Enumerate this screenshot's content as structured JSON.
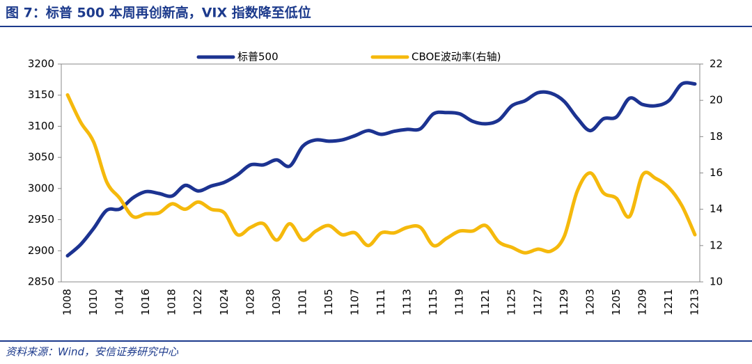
{
  "header": {
    "title": "图 7：标普 500 本周再创新高，VIX 指数降至低位"
  },
  "chart_data": {
    "type": "line",
    "categories": [
      "1008",
      null,
      "1010",
      null,
      "1014",
      null,
      "1016",
      null,
      "1018",
      null,
      "1022",
      null,
      "1024",
      null,
      "1028",
      null,
      "1030",
      null,
      "1101",
      null,
      "1105",
      null,
      "1107",
      null,
      "1111",
      null,
      "1113",
      null,
      "1115",
      null,
      "1119",
      null,
      "1121",
      null,
      "1125",
      null,
      "1127",
      null,
      "1129",
      null,
      "1203",
      null,
      "1205",
      null,
      "1209",
      null,
      "1211",
      null,
      "1213"
    ],
    "series": [
      {
        "name": "标普500",
        "color": "#1c3391",
        "values": [
          2892,
          2910,
          2936,
          2965,
          2967,
          2985,
          2995,
          2992,
          2988,
          3005,
          2996,
          3004,
          3010,
          3022,
          3038,
          3038,
          3046,
          3036,
          3068,
          3078,
          3076,
          3078,
          3085,
          3093,
          3087,
          3092,
          3095,
          3096,
          3120,
          3122,
          3120,
          3108,
          3104,
          3110,
          3133,
          3141,
          3154,
          3153,
          3140,
          3113,
          3093,
          3112,
          3115,
          3145,
          3135,
          3133,
          3141,
          3168,
          3168
        ]
      },
      {
        "name": "CBOE波动率(右轴)",
        "color": "#f5b90c",
        "axis": "y2",
        "values": [
          20.3,
          18.8,
          17.7,
          15.5,
          14.6,
          13.6,
          13.75,
          13.8,
          14.3,
          14.0,
          14.4,
          14.0,
          13.8,
          12.6,
          13.0,
          13.2,
          12.3,
          13.2,
          12.3,
          12.8,
          13.1,
          12.6,
          12.7,
          12.0,
          12.7,
          12.7,
          13.0,
          13.0,
          12.0,
          12.4,
          12.8,
          12.8,
          13.1,
          12.2,
          11.9,
          11.6,
          11.8,
          11.7,
          12.5,
          15.0,
          16.0,
          14.9,
          14.6,
          13.6,
          15.9,
          15.7,
          15.2,
          14.2,
          12.6
        ]
      }
    ],
    "ylim": [
      2850,
      3200
    ],
    "yticks": [
      2850,
      2900,
      2950,
      3000,
      3050,
      3100,
      3150,
      3200
    ],
    "y2lim": [
      10,
      22
    ],
    "y2ticks": [
      10,
      12,
      14,
      16,
      18,
      20,
      22
    ],
    "legend": "top"
  },
  "footer": {
    "source": "资料来源：Wind，安信证券研究中心"
  }
}
